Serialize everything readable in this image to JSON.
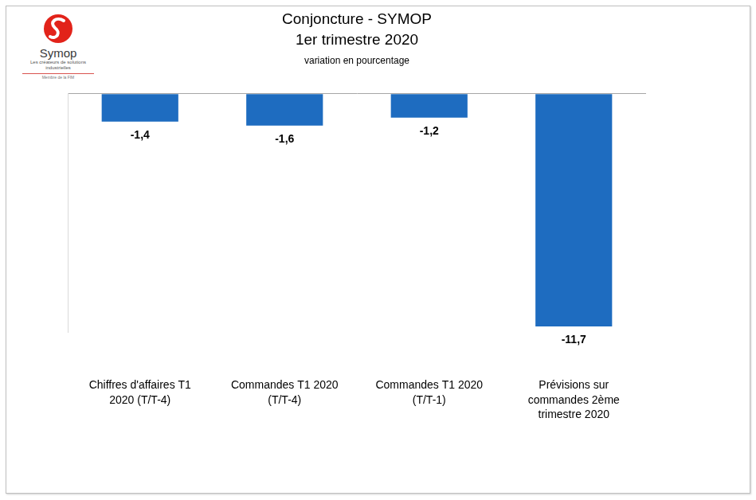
{
  "chart_data": {
    "type": "bar",
    "title": [
      "Conjoncture - SYMOP",
      "1er trimestre 2020"
    ],
    "subtitle": "variation en pourcentage",
    "annotations": [
      "Symop",
      "Les créateurs de solutions industrielles",
      "Membre de la FIM"
    ],
    "categories": [
      "Chiffres d'affaires T1 2020 (T/T-4)",
      "Commandes T1 2020 (T/T-4)",
      "Commandes T1 2020 (T/T-1)",
      "Prévisions sur commandes 2ème trimestre 2020"
    ],
    "values": [
      -1.4,
      -1.6,
      -1.2,
      -11.7
    ],
    "value_labels": [
      "-1,4",
      "-1,6",
      "-1,2",
      "-11,7"
    ],
    "color": "#1e6cc0",
    "ylim": [
      -12,
      0
    ],
    "yticks": [
      0
    ],
    "grid": true,
    "data_labels": true,
    "tick_labels": "x"
  }
}
